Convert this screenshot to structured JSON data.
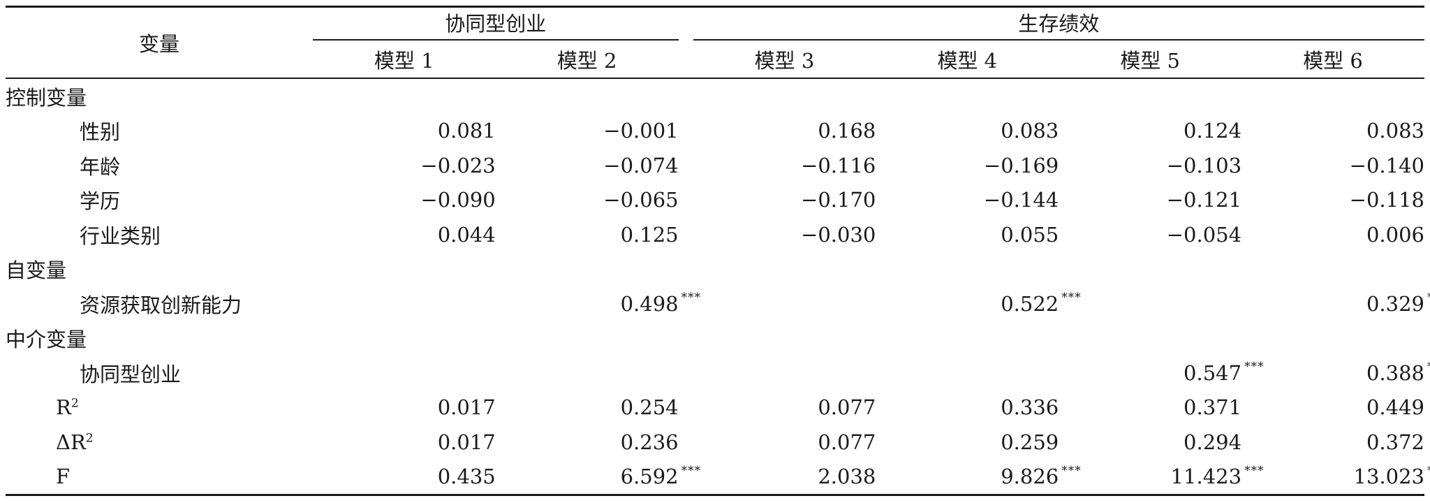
{
  "header": {
    "variable": "变量",
    "group1": "协同型创业",
    "group2": "生存绩效",
    "models": [
      "模型 1",
      "模型 2",
      "模型 3",
      "模型 4",
      "模型 5",
      "模型 6"
    ]
  },
  "rows": [
    {
      "label": "控制变量",
      "values": [
        "",
        "",
        "",
        "",
        "",
        ""
      ],
      "stars": [
        "",
        "",
        "",
        "",
        "",
        ""
      ]
    },
    {
      "label": "性别",
      "values": [
        "0.081",
        "−0.001",
        "0.168",
        "0.083",
        "0.124",
        "0.083"
      ],
      "stars": [
        "",
        "",
        "",
        "",
        "",
        ""
      ]
    },
    {
      "label": "年龄",
      "values": [
        "−0.023",
        "−0.074",
        "−0.116",
        "−0.169",
        "−0.103",
        "−0.140"
      ],
      "stars": [
        "",
        "",
        "",
        "",
        "",
        ""
      ]
    },
    {
      "label": "学历",
      "values": [
        "−0.090",
        "−0.065",
        "−0.170",
        "−0.144",
        "−0.121",
        "−0.118"
      ],
      "stars": [
        "",
        "",
        "",
        "",
        "",
        ""
      ]
    },
    {
      "label": "行业类别",
      "values": [
        "0.044",
        "0.125",
        "−0.030",
        "0.055",
        "−0.054",
        "0.006"
      ],
      "stars": [
        "",
        "",
        "",
        "",
        "",
        ""
      ]
    },
    {
      "label": "自变量",
      "values": [
        "",
        "",
        "",
        "",
        "",
        ""
      ],
      "stars": [
        "",
        "",
        "",
        "",
        "",
        ""
      ]
    },
    {
      "label": "资源获取创新能力",
      "values": [
        "",
        "0.498",
        "",
        "0.522",
        "",
        "0.329"
      ],
      "stars": [
        "",
        "***",
        "",
        "***",
        "",
        "***"
      ]
    },
    {
      "label": "中介变量",
      "values": [
        "",
        "",
        "",
        "",
        "",
        ""
      ],
      "stars": [
        "",
        "",
        "",
        "",
        "",
        ""
      ]
    },
    {
      "label": "协同型创业",
      "values": [
        "",
        "",
        "",
        "",
        "0.547",
        "0.388"
      ],
      "stars": [
        "",
        "",
        "",
        "",
        "***",
        "***"
      ]
    },
    {
      "label": "R",
      "sup": "2",
      "values": [
        "0.017",
        "0.254",
        "0.077",
        "0.336",
        "0.371",
        "0.449"
      ],
      "stars": [
        "",
        "",
        "",
        "",
        "",
        ""
      ]
    },
    {
      "label": "ΔR",
      "sup": "2",
      "values": [
        "0.017",
        "0.236",
        "0.077",
        "0.259",
        "0.294",
        "0.372"
      ],
      "stars": [
        "",
        "",
        "",
        "",
        "",
        ""
      ]
    },
    {
      "label": "F",
      "values": [
        "0.435",
        "6.592",
        "2.038",
        "9.826",
        "11.423",
        "13.023"
      ],
      "stars": [
        "",
        "***",
        "",
        "***",
        "***",
        "***"
      ]
    }
  ]
}
